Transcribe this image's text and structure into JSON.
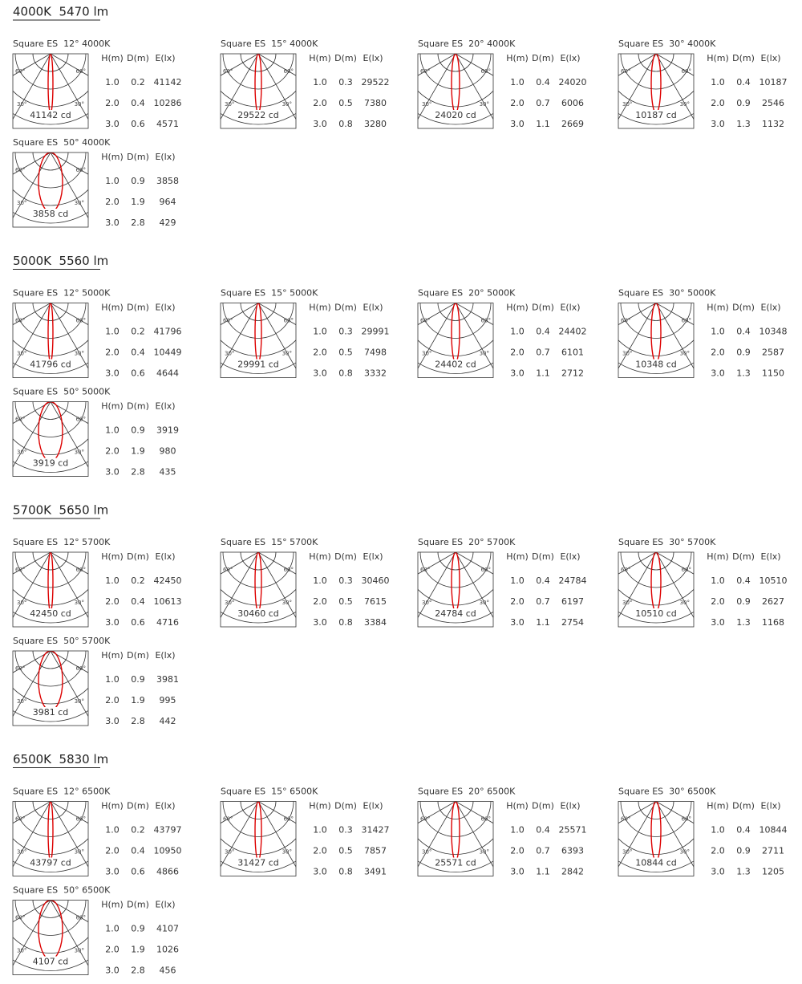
{
  "polar_labels": {
    "upper": "60°",
    "lower": "30°"
  },
  "table_headers": [
    "H(m)",
    "D(m)",
    "E(lx)"
  ],
  "sections": [
    {
      "title": "4000K  5470 lm",
      "items": [
        {
          "title": "Square ES  12° 4000K",
          "peak": "41142 cd",
          "rows": [
            [
              "1.0",
              "0.2",
              "41142"
            ],
            [
              "2.0",
              "0.4",
              "10286"
            ],
            [
              "3.0",
              "0.6",
              "4571"
            ]
          ]
        },
        {
          "title": "Square ES  15° 4000K",
          "peak": "29522 cd",
          "rows": [
            [
              "1.0",
              "0.3",
              "29522"
            ],
            [
              "2.0",
              "0.5",
              "7380"
            ],
            [
              "3.0",
              "0.8",
              "3280"
            ]
          ]
        },
        {
          "title": "Square ES  20° 4000K",
          "peak": "24020 cd",
          "rows": [
            [
              "1.0",
              "0.4",
              "24020"
            ],
            [
              "2.0",
              "0.7",
              "6006"
            ],
            [
              "3.0",
              "1.1",
              "2669"
            ]
          ]
        },
        {
          "title": "Square ES  30° 4000K",
          "peak": "10187 cd",
          "rows": [
            [
              "1.0",
              "0.4",
              "10187"
            ],
            [
              "2.0",
              "0.9",
              "2546"
            ],
            [
              "3.0",
              "1.3",
              "1132"
            ]
          ]
        },
        {
          "title": "Square ES  50° 4000K",
          "peak": "3858 cd",
          "rows": [
            [
              "1.0",
              "0.9",
              "3858"
            ],
            [
              "2.0",
              "1.9",
              "964"
            ],
            [
              "3.0",
              "2.8",
              "429"
            ]
          ]
        }
      ]
    },
    {
      "title": "5000K  5560 lm",
      "items": [
        {
          "title": "Square ES  12° 5000K",
          "peak": "41796 cd",
          "rows": [
            [
              "1.0",
              "0.2",
              "41796"
            ],
            [
              "2.0",
              "0.4",
              "10449"
            ],
            [
              "3.0",
              "0.6",
              "4644"
            ]
          ]
        },
        {
          "title": "Square ES  15° 5000K",
          "peak": "29991 cd",
          "rows": [
            [
              "1.0",
              "0.3",
              "29991"
            ],
            [
              "2.0",
              "0.5",
              "7498"
            ],
            [
              "3.0",
              "0.8",
              "3332"
            ]
          ]
        },
        {
          "title": "Square ES  20° 5000K",
          "peak": "24402 cd",
          "rows": [
            [
              "1.0",
              "0.4",
              "24402"
            ],
            [
              "2.0",
              "0.7",
              "6101"
            ],
            [
              "3.0",
              "1.1",
              "2712"
            ]
          ]
        },
        {
          "title": "Square ES  30° 5000K",
          "peak": "10348 cd",
          "rows": [
            [
              "1.0",
              "0.4",
              "10348"
            ],
            [
              "2.0",
              "0.9",
              "2587"
            ],
            [
              "3.0",
              "1.3",
              "1150"
            ]
          ]
        },
        {
          "title": "Square ES  50° 5000K",
          "peak": "3919 cd",
          "rows": [
            [
              "1.0",
              "0.9",
              "3919"
            ],
            [
              "2.0",
              "1.9",
              "980"
            ],
            [
              "3.0",
              "2.8",
              "435"
            ]
          ]
        }
      ]
    },
    {
      "title": "5700K  5650 lm",
      "items": [
        {
          "title": "Square ES  12° 5700K",
          "peak": "42450 cd",
          "rows": [
            [
              "1.0",
              "0.2",
              "42450"
            ],
            [
              "2.0",
              "0.4",
              "10613"
            ],
            [
              "3.0",
              "0.6",
              "4716"
            ]
          ]
        },
        {
          "title": "Square ES  15° 5700K",
          "peak": "30460 cd",
          "rows": [
            [
              "1.0",
              "0.3",
              "30460"
            ],
            [
              "2.0",
              "0.5",
              "7615"
            ],
            [
              "3.0",
              "0.8",
              "3384"
            ]
          ]
        },
        {
          "title": "Square ES  20° 5700K",
          "peak": "24784 cd",
          "rows": [
            [
              "1.0",
              "0.4",
              "24784"
            ],
            [
              "2.0",
              "0.7",
              "6197"
            ],
            [
              "3.0",
              "1.1",
              "2754"
            ]
          ]
        },
        {
          "title": "Square ES  30° 5700K",
          "peak": "10510 cd",
          "rows": [
            [
              "1.0",
              "0.4",
              "10510"
            ],
            [
              "2.0",
              "0.9",
              "2627"
            ],
            [
              "3.0",
              "1.3",
              "1168"
            ]
          ]
        },
        {
          "title": "Square ES  50° 5700K",
          "peak": "3981 cd",
          "rows": [
            [
              "1.0",
              "0.9",
              "3981"
            ],
            [
              "2.0",
              "1.9",
              "995"
            ],
            [
              "3.0",
              "2.8",
              "442"
            ]
          ]
        }
      ]
    },
    {
      "title": "6500K  5830 lm",
      "items": [
        {
          "title": "Square ES  12° 6500K",
          "peak": "43797 cd",
          "rows": [
            [
              "1.0",
              "0.2",
              "43797"
            ],
            [
              "2.0",
              "0.4",
              "10950"
            ],
            [
              "3.0",
              "0.6",
              "4866"
            ]
          ]
        },
        {
          "title": "Square ES  15° 6500K",
          "peak": "31427 cd",
          "rows": [
            [
              "1.0",
              "0.3",
              "31427"
            ],
            [
              "2.0",
              "0.5",
              "7857"
            ],
            [
              "3.0",
              "0.8",
              "3491"
            ]
          ]
        },
        {
          "title": "Square ES  20° 6500K",
          "peak": "25571 cd",
          "rows": [
            [
              "1.0",
              "0.4",
              "25571"
            ],
            [
              "2.0",
              "0.7",
              "6393"
            ],
            [
              "3.0",
              "1.1",
              "2842"
            ]
          ]
        },
        {
          "title": "Square ES  30° 6500K",
          "peak": "10844 cd",
          "rows": [
            [
              "1.0",
              "0.4",
              "10844"
            ],
            [
              "2.0",
              "0.9",
              "2711"
            ],
            [
              "3.0",
              "1.3",
              "1205"
            ]
          ]
        },
        {
          "title": "Square ES  50° 6500K",
          "peak": "4107 cd",
          "rows": [
            [
              "1.0",
              "0.9",
              "4107"
            ],
            [
              "2.0",
              "1.9",
              "1026"
            ],
            [
              "3.0",
              "2.8",
              "456"
            ]
          ]
        }
      ]
    }
  ]
}
